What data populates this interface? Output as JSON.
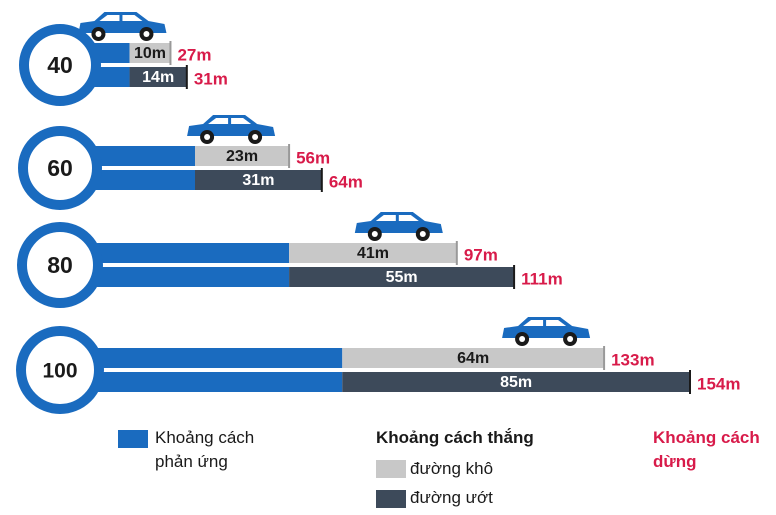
{
  "chart_data": {
    "type": "stacked-bar",
    "categories": [
      "40",
      "60",
      "80",
      "100"
    ],
    "reaction": {
      "name": "Khoảng cách phản ứng",
      "color": "#1a6bbf",
      "values": [
        17,
        33,
        56,
        69
      ]
    },
    "braking": {
      "title": "Khoảng cách thắng",
      "series": [
        {
          "name": "đường khô",
          "color": "#c8c8c8",
          "text_color": "#1a1a1a",
          "values": [
            10,
            23,
            41,
            64
          ],
          "value_labels": [
            "10m",
            "23m",
            "41m",
            "64m"
          ]
        },
        {
          "name": "đường ướt",
          "color": "#3d4a5a",
          "text_color": "#ffffff",
          "values": [
            14,
            31,
            55,
            85
          ],
          "value_labels": [
            "14m",
            "31m",
            "55m",
            "85m"
          ]
        }
      ]
    },
    "stopping": {
      "name": "Khoảng cách dừng",
      "color": "#d81b4a",
      "series": [
        {
          "values": [
            27,
            56,
            97,
            133
          ],
          "value_labels": [
            "27m",
            "56m",
            "97m",
            "133m"
          ]
        },
        {
          "values": [
            31,
            64,
            111,
            154
          ],
          "value_labels": [
            "31m",
            "64m",
            "111m",
            "154m"
          ]
        }
      ]
    }
  }
}
